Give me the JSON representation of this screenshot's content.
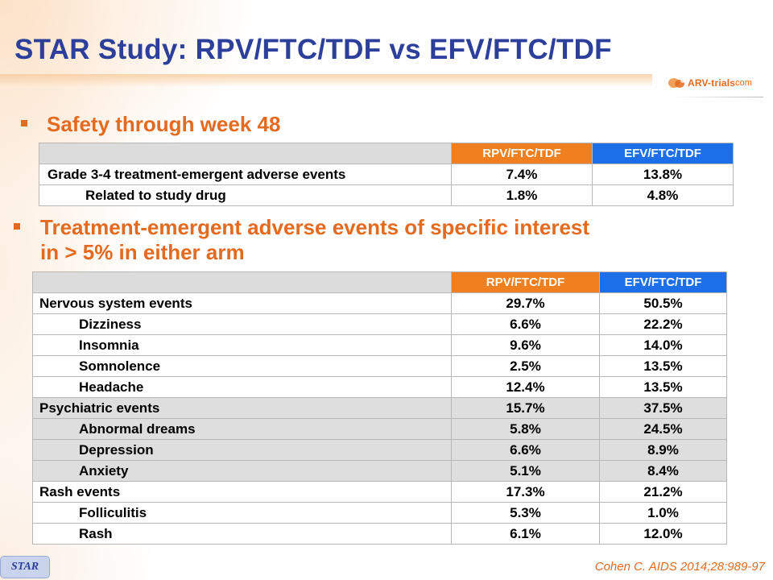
{
  "slide": {
    "title": "STAR Study: RPV/FTC/TDF vs EFV/FTC/TDF",
    "logo_text": "ARV-trials",
    "logo_suffix": "com",
    "footer_tab": "STAR",
    "citation": "Cohen C. AIDS 2014;28:989-97",
    "colors": {
      "title": "#2c3f9a",
      "accent": "#e36a1f",
      "rpv_header": "#f07f1f",
      "efv_header": "#1c6fe8"
    }
  },
  "section1": {
    "heading": "Safety through week 48",
    "table": {
      "col_rpv": "RPV/FTC/TDF",
      "col_efv": "EFV/FTC/TDF",
      "rows": [
        {
          "label": "Grade 3-4 treatment-emergent adverse events",
          "rpv": "7.4%",
          "efv": "13.8%"
        },
        {
          "label": "Related to study drug",
          "rpv": "1.8%",
          "efv": "4.8%"
        }
      ]
    }
  },
  "section2": {
    "heading_line1": "Treatment-emergent adverse events of specific interest",
    "heading_line2": "in > 5% in either arm",
    "table": {
      "col_rpv": "RPV/FTC/TDF",
      "col_efv": "EFV/FTC/TDF",
      "rows": [
        {
          "label": "Nervous system events",
          "rpv": "29.7%",
          "efv": "50.5%"
        },
        {
          "label": "Dizziness",
          "rpv": "6.6%",
          "efv": "22.2%"
        },
        {
          "label": "Insomnia",
          "rpv": "9.6%",
          "efv": "14.0%"
        },
        {
          "label": "Somnolence",
          "rpv": "2.5%",
          "efv": "13.5%"
        },
        {
          "label": "Headache",
          "rpv": "12.4%",
          "efv": "13.5%"
        },
        {
          "label": "Psychiatric events",
          "rpv": "15.7%",
          "efv": "37.5%"
        },
        {
          "label": "Abnormal dreams",
          "rpv": "5.8%",
          "efv": "24.5%"
        },
        {
          "label": "Depression",
          "rpv": "6.6%",
          "efv": "8.9%"
        },
        {
          "label": "Anxiety",
          "rpv": "5.1%",
          "efv": "8.4%"
        },
        {
          "label": "Rash events",
          "rpv": "17.3%",
          "efv": "21.2%"
        },
        {
          "label": "Folliculitis",
          "rpv": "5.3%",
          "efv": "1.0%"
        },
        {
          "label": "Rash",
          "rpv": "6.1%",
          "efv": "12.0%"
        }
      ]
    }
  }
}
